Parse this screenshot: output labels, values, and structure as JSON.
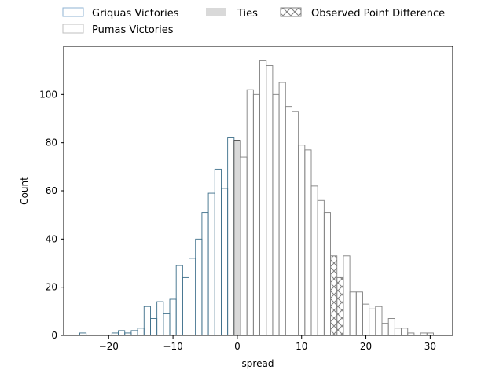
{
  "chart_data": {
    "type": "bar",
    "chart_kind": "histogram",
    "title": "",
    "xlabel": "spread",
    "ylabel": "Count",
    "xlim": [
      -27,
      33.5
    ],
    "ylim": [
      0,
      120
    ],
    "bin_width": 1,
    "x_ticks": [
      -20,
      -10,
      0,
      10,
      20,
      30
    ],
    "x_tick_labels": [
      "−20",
      "−10",
      "0",
      "10",
      "20",
      "30"
    ],
    "y_ticks": [
      0,
      20,
      40,
      60,
      80,
      100
    ],
    "y_tick_labels": [
      "0",
      "20",
      "40",
      "60",
      "80",
      "100"
    ],
    "grid": false,
    "legend_position": "top",
    "legend": [
      {
        "label": "Griquas Victories",
        "style": "outline",
        "color": "#8fb3d3"
      },
      {
        "label": "Ties",
        "style": "filled",
        "color": "#d9d9d9"
      },
      {
        "label": "Observed Point Difference",
        "style": "hatched",
        "color": "#808080"
      },
      {
        "label": "Pumas Victories",
        "style": "outline",
        "color": "#bfbfbf"
      }
    ],
    "colors": {
      "griquas_edge": "#3d6f8a",
      "pumas_edge": "#808080",
      "tie_fill": "#d9d9d9",
      "tie_edge": "#404040",
      "observed_edge": "#808080"
    },
    "observed_point_difference": 15,
    "series": [
      {
        "name": "Griquas Victories",
        "x": [
          -24,
          -23,
          -22,
          -21,
          -20,
          -19,
          -18,
          -17,
          -16,
          -15,
          -14,
          -13,
          -12,
          -11,
          -10,
          -9,
          -8,
          -7,
          -6,
          -5,
          -4,
          -3,
          -2,
          -1
        ],
        "values": [
          1,
          0,
          0,
          0,
          0,
          1,
          2,
          1,
          2,
          3,
          12,
          7,
          14,
          9,
          15,
          29,
          24,
          32,
          40,
          51,
          59,
          69,
          61,
          82
        ]
      },
      {
        "name": "Ties",
        "x": [
          0
        ],
        "values": [
          81
        ]
      },
      {
        "name": "Pumas Victories",
        "x": [
          1,
          2,
          3,
          4,
          5,
          6,
          7,
          8,
          9,
          10,
          11,
          12,
          13,
          14,
          15,
          16,
          17,
          18,
          19,
          20,
          21,
          22,
          23,
          24,
          25,
          26,
          27,
          28,
          29,
          30
        ],
        "values": [
          74,
          102,
          100,
          114,
          112,
          100,
          105,
          95,
          93,
          79,
          77,
          62,
          56,
          51,
          33,
          24,
          33,
          18,
          18,
          13,
          11,
          12,
          5,
          7,
          3,
          3,
          1,
          0,
          1,
          1
        ]
      }
    ]
  }
}
